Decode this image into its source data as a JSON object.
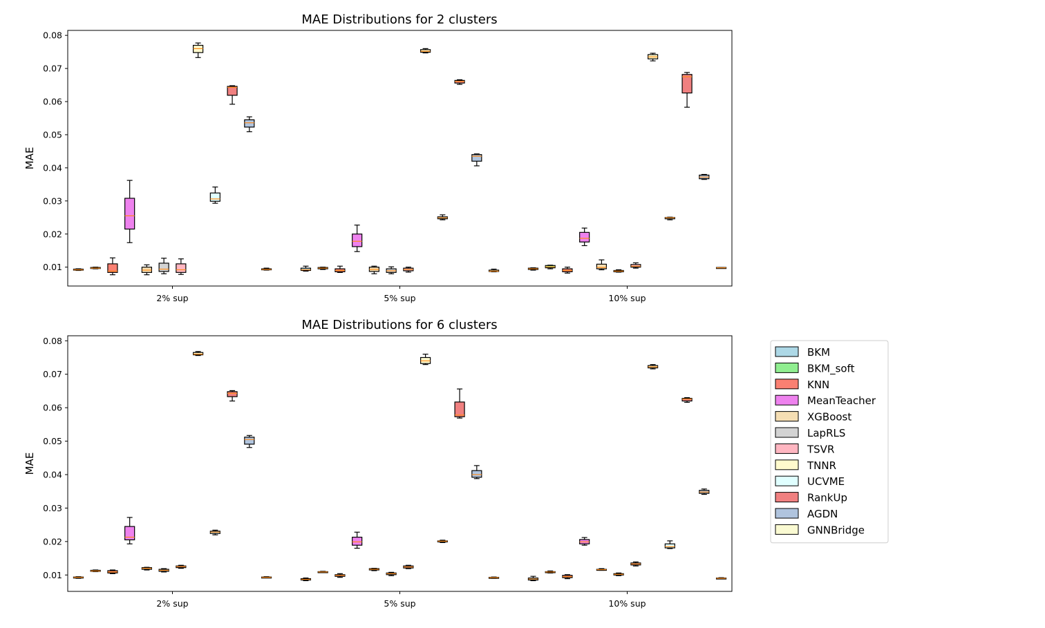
{
  "chart_data": [
    {
      "type": "boxplot",
      "title": "MAE Distributions for 2 clusters",
      "ylabel": "MAE",
      "xlabel": "",
      "ylim": [
        0.0043,
        0.0815
      ],
      "yticks": [
        "0.01",
        "0.02",
        "0.03",
        "0.04",
        "0.05",
        "0.06",
        "0.07",
        "0.08"
      ],
      "yticks_values": [
        0.01,
        0.02,
        0.03,
        0.04,
        0.05,
        0.06,
        0.07,
        0.08
      ],
      "groups": [
        "2% sup",
        "5% sup",
        "10% sup"
      ],
      "series": [
        {
          "name": "BKM",
          "boxes": [
            {
              "wl": 0.009,
              "q1": 0.0091,
              "med": 0.0092,
              "q3": 0.0094,
              "wh": 0.0095
            },
            {
              "wl": 0.0088,
              "q1": 0.009,
              "med": 0.0092,
              "q3": 0.0097,
              "wh": 0.0103
            },
            {
              "wl": 0.0091,
              "q1": 0.0093,
              "med": 0.0095,
              "q3": 0.0097,
              "wh": 0.0098
            }
          ]
        },
        {
          "name": "BKM_soft",
          "boxes": [
            {
              "wl": 0.0095,
              "q1": 0.0096,
              "med": 0.0097,
              "q3": 0.0099,
              "wh": 0.01
            },
            {
              "wl": 0.0093,
              "q1": 0.0095,
              "med": 0.0097,
              "q3": 0.0099,
              "wh": 0.01
            },
            {
              "wl": 0.0095,
              "q1": 0.0098,
              "med": 0.0101,
              "q3": 0.0105,
              "wh": 0.0106
            }
          ]
        },
        {
          "name": "KNN",
          "boxes": [
            {
              "wl": 0.0077,
              "q1": 0.0084,
              "med": 0.0088,
              "q3": 0.011,
              "wh": 0.0128
            },
            {
              "wl": 0.0084,
              "q1": 0.0086,
              "med": 0.009,
              "q3": 0.0095,
              "wh": 0.0103
            },
            {
              "wl": 0.0082,
              "q1": 0.0086,
              "med": 0.009,
              "q3": 0.0095,
              "wh": 0.01
            }
          ]
        },
        {
          "name": "MeanTeacher",
          "boxes": [
            {
              "wl": 0.0174,
              "q1": 0.0215,
              "med": 0.0255,
              "q3": 0.0308,
              "wh": 0.0362
            },
            {
              "wl": 0.0147,
              "q1": 0.0162,
              "med": 0.0178,
              "q3": 0.02,
              "wh": 0.0227
            },
            {
              "wl": 0.0165,
              "q1": 0.0176,
              "med": 0.0187,
              "q3": 0.0205,
              "wh": 0.0218
            }
          ]
        },
        {
          "name": "XGBoost",
          "boxes": [
            {
              "wl": 0.0077,
              "q1": 0.0084,
              "med": 0.0091,
              "q3": 0.01,
              "wh": 0.0107
            },
            {
              "wl": 0.008,
              "q1": 0.0087,
              "med": 0.0093,
              "q3": 0.01,
              "wh": 0.0103
            },
            {
              "wl": 0.0092,
              "q1": 0.0095,
              "med": 0.0099,
              "q3": 0.0109,
              "wh": 0.0122
            }
          ]
        },
        {
          "name": "LapRLS",
          "boxes": [
            {
              "wl": 0.008,
              "q1": 0.0087,
              "med": 0.0094,
              "q3": 0.0112,
              "wh": 0.0127
            },
            {
              "wl": 0.008,
              "q1": 0.0084,
              "med": 0.0089,
              "q3": 0.0095,
              "wh": 0.0101
            },
            {
              "wl": 0.0085,
              "q1": 0.0086,
              "med": 0.0088,
              "q3": 0.009,
              "wh": 0.0092
            }
          ]
        },
        {
          "name": "TSVR",
          "boxes": [
            {
              "wl": 0.0078,
              "q1": 0.0084,
              "med": 0.0092,
              "q3": 0.011,
              "wh": 0.0125
            },
            {
              "wl": 0.0085,
              "q1": 0.0089,
              "med": 0.0093,
              "q3": 0.0097,
              "wh": 0.01
            },
            {
              "wl": 0.0097,
              "q1": 0.01,
              "med": 0.0103,
              "q3": 0.0108,
              "wh": 0.0113
            }
          ]
        },
        {
          "name": "TNNR",
          "boxes": [
            {
              "wl": 0.0733,
              "q1": 0.0748,
              "med": 0.076,
              "q3": 0.077,
              "wh": 0.0777
            },
            {
              "wl": 0.0747,
              "q1": 0.0749,
              "med": 0.0752,
              "q3": 0.0757,
              "wh": 0.076
            },
            {
              "wl": 0.0723,
              "q1": 0.0729,
              "med": 0.0735,
              "q3": 0.0742,
              "wh": 0.0746
            }
          ]
        },
        {
          "name": "UCVME",
          "boxes": [
            {
              "wl": 0.0293,
              "q1": 0.0299,
              "med": 0.0306,
              "q3": 0.0324,
              "wh": 0.0342
            },
            {
              "wl": 0.0243,
              "q1": 0.0246,
              "med": 0.0249,
              "q3": 0.0252,
              "wh": 0.0258
            },
            {
              "wl": 0.0243,
              "q1": 0.0246,
              "med": 0.0249,
              "q3": 0.025,
              "wh": 0.0251
            }
          ]
        },
        {
          "name": "RankUp",
          "boxes": [
            {
              "wl": 0.0592,
              "q1": 0.0619,
              "med": 0.0643,
              "q3": 0.0646,
              "wh": 0.0648
            },
            {
              "wl": 0.0652,
              "q1": 0.0656,
              "med": 0.0661,
              "q3": 0.0664,
              "wh": 0.0666
            },
            {
              "wl": 0.0583,
              "q1": 0.0626,
              "med": 0.0675,
              "q3": 0.0682,
              "wh": 0.0688
            }
          ]
        },
        {
          "name": "AGDN",
          "boxes": [
            {
              "wl": 0.0509,
              "q1": 0.0523,
              "med": 0.0536,
              "q3": 0.0545,
              "wh": 0.0554
            },
            {
              "wl": 0.0406,
              "q1": 0.042,
              "med": 0.0435,
              "q3": 0.044,
              "wh": 0.0442
            },
            {
              "wl": 0.0365,
              "q1": 0.0367,
              "med": 0.0372,
              "q3": 0.0378,
              "wh": 0.038
            }
          ]
        },
        {
          "name": "GNNBridge",
          "boxes": [
            {
              "wl": 0.0091,
              "q1": 0.0092,
              "med": 0.0093,
              "q3": 0.0095,
              "wh": 0.0097
            },
            {
              "wl": 0.0086,
              "q1": 0.0087,
              "med": 0.0088,
              "q3": 0.0091,
              "wh": 0.0094
            },
            {
              "wl": 0.0097,
              "q1": 0.0097,
              "med": 0.0098,
              "q3": 0.0099,
              "wh": 0.0099
            }
          ]
        }
      ]
    },
    {
      "type": "boxplot",
      "title": "MAE Distributions for 6 clusters",
      "ylabel": "MAE",
      "xlabel": "",
      "ylim": [
        0.0051,
        0.0815
      ],
      "yticks": [
        "0.01",
        "0.02",
        "0.03",
        "0.04",
        "0.05",
        "0.06",
        "0.07",
        "0.08"
      ],
      "yticks_values": [
        0.01,
        0.02,
        0.03,
        0.04,
        0.05,
        0.06,
        0.07,
        0.08
      ],
      "groups": [
        "2% sup",
        "5% sup",
        "10% sup"
      ],
      "series": [
        {
          "name": "BKM",
          "boxes": [
            {
              "wl": 0.009,
              "q1": 0.0092,
              "med": 0.0093,
              "q3": 0.0094,
              "wh": 0.0095
            },
            {
              "wl": 0.0083,
              "q1": 0.0085,
              "med": 0.0087,
              "q3": 0.0089,
              "wh": 0.0091
            },
            {
              "wl": 0.0083,
              "q1": 0.0085,
              "med": 0.0088,
              "q3": 0.0091,
              "wh": 0.0096
            }
          ]
        },
        {
          "name": "BKM_soft",
          "boxes": [
            {
              "wl": 0.011,
              "q1": 0.0111,
              "med": 0.0112,
              "q3": 0.0114,
              "wh": 0.0115
            },
            {
              "wl": 0.0107,
              "q1": 0.0108,
              "med": 0.0109,
              "q3": 0.011,
              "wh": 0.0111
            },
            {
              "wl": 0.0106,
              "q1": 0.0108,
              "med": 0.0109,
              "q3": 0.011,
              "wh": 0.0112
            }
          ]
        },
        {
          "name": "KNN",
          "boxes": [
            {
              "wl": 0.0104,
              "q1": 0.0106,
              "med": 0.0109,
              "q3": 0.0113,
              "wh": 0.0115
            },
            {
              "wl": 0.0093,
              "q1": 0.0096,
              "med": 0.0099,
              "q3": 0.0101,
              "wh": 0.0104
            },
            {
              "wl": 0.0089,
              "q1": 0.0092,
              "med": 0.0095,
              "q3": 0.0099,
              "wh": 0.0101
            }
          ]
        },
        {
          "name": "MeanTeacher",
          "boxes": [
            {
              "wl": 0.0193,
              "q1": 0.0205,
              "med": 0.0213,
              "q3": 0.0245,
              "wh": 0.0272
            },
            {
              "wl": 0.018,
              "q1": 0.0189,
              "med": 0.0199,
              "q3": 0.0213,
              "wh": 0.0228
            },
            {
              "wl": 0.0189,
              "q1": 0.0193,
              "med": 0.0199,
              "q3": 0.0206,
              "wh": 0.0212
            }
          ]
        },
        {
          "name": "XGBoost",
          "boxes": [
            {
              "wl": 0.0115,
              "q1": 0.0117,
              "med": 0.012,
              "q3": 0.0122,
              "wh": 0.0123
            },
            {
              "wl": 0.0113,
              "q1": 0.0115,
              "med": 0.0117,
              "q3": 0.0119,
              "wh": 0.012
            },
            {
              "wl": 0.0114,
              "q1": 0.0115,
              "med": 0.0116,
              "q3": 0.0117,
              "wh": 0.0119
            }
          ]
        },
        {
          "name": "LapRLS",
          "boxes": [
            {
              "wl": 0.0109,
              "q1": 0.0111,
              "med": 0.0114,
              "q3": 0.0117,
              "wh": 0.0119
            },
            {
              "wl": 0.0098,
              "q1": 0.0101,
              "med": 0.0104,
              "q3": 0.0106,
              "wh": 0.0108
            },
            {
              "wl": 0.0098,
              "q1": 0.01,
              "med": 0.0102,
              "q3": 0.0104,
              "wh": 0.0106
            }
          ]
        },
        {
          "name": "TSVR",
          "boxes": [
            {
              "wl": 0.012,
              "q1": 0.0122,
              "med": 0.0125,
              "q3": 0.0127,
              "wh": 0.0129
            },
            {
              "wl": 0.0119,
              "q1": 0.0121,
              "med": 0.0124,
              "q3": 0.0127,
              "wh": 0.0129
            },
            {
              "wl": 0.0127,
              "q1": 0.013,
              "med": 0.0133,
              "q3": 0.0136,
              "wh": 0.0139
            }
          ]
        },
        {
          "name": "TNNR",
          "boxes": [
            {
              "wl": 0.0756,
              "q1": 0.0758,
              "med": 0.076,
              "q3": 0.0765,
              "wh": 0.0768
            },
            {
              "wl": 0.0729,
              "q1": 0.0732,
              "med": 0.074,
              "q3": 0.075,
              "wh": 0.076
            },
            {
              "wl": 0.0716,
              "q1": 0.0719,
              "med": 0.0722,
              "q3": 0.0726,
              "wh": 0.0729
            }
          ]
        },
        {
          "name": "UCVME",
          "boxes": [
            {
              "wl": 0.022,
              "q1": 0.0224,
              "med": 0.0228,
              "q3": 0.0231,
              "wh": 0.0234
            },
            {
              "wl": 0.0197,
              "q1": 0.0199,
              "med": 0.0201,
              "q3": 0.0202,
              "wh": 0.0204
            },
            {
              "wl": 0.0179,
              "q1": 0.0181,
              "med": 0.0185,
              "q3": 0.0193,
              "wh": 0.0202
            }
          ]
        },
        {
          "name": "RankUp",
          "boxes": [
            {
              "wl": 0.062,
              "q1": 0.0633,
              "med": 0.0643,
              "q3": 0.0648,
              "wh": 0.0651
            },
            {
              "wl": 0.0569,
              "q1": 0.0573,
              "med": 0.0578,
              "q3": 0.0617,
              "wh": 0.0656
            },
            {
              "wl": 0.0616,
              "q1": 0.062,
              "med": 0.0626,
              "q3": 0.0628,
              "wh": 0.063
            }
          ]
        },
        {
          "name": "AGDN",
          "boxes": [
            {
              "wl": 0.0481,
              "q1": 0.0491,
              "med": 0.0505,
              "q3": 0.0512,
              "wh": 0.0517
            },
            {
              "wl": 0.0388,
              "q1": 0.0392,
              "med": 0.04,
              "q3": 0.0412,
              "wh": 0.0427
            },
            {
              "wl": 0.0341,
              "q1": 0.0344,
              "med": 0.0348,
              "q3": 0.0353,
              "wh": 0.0357
            }
          ]
        },
        {
          "name": "GNNBridge",
          "boxes": [
            {
              "wl": 0.0092,
              "q1": 0.0093,
              "med": 0.0093,
              "q3": 0.0094,
              "wh": 0.0095
            },
            {
              "wl": 0.009,
              "q1": 0.0091,
              "med": 0.0092,
              "q3": 0.0093,
              "wh": 0.0094
            },
            {
              "wl": 0.0089,
              "q1": 0.009,
              "med": 0.009,
              "q3": 0.0091,
              "wh": 0.0092
            }
          ]
        }
      ]
    }
  ],
  "legend": {
    "placement": "right",
    "entries": [
      {
        "name": "BKM",
        "color": "#add8e6"
      },
      {
        "name": "BKM_soft",
        "color": "#90ee90"
      },
      {
        "name": "KNN",
        "color": "#fa8072"
      },
      {
        "name": "MeanTeacher",
        "color": "#ee82ee"
      },
      {
        "name": "XGBoost",
        "color": "#f5deb3"
      },
      {
        "name": "LapRLS",
        "color": "#d3d3d3"
      },
      {
        "name": "TSVR",
        "color": "#ffb6c1"
      },
      {
        "name": "TNNR",
        "color": "#fffacd"
      },
      {
        "name": "UCVME",
        "color": "#e0ffff"
      },
      {
        "name": "RankUp",
        "color": "#f08080"
      },
      {
        "name": "AGDN",
        "color": "#b0c4de"
      },
      {
        "name": "GNNBridge",
        "color": "#fafad2"
      }
    ]
  },
  "colors": {
    "median": "#ff8c1a",
    "frame": "#000000",
    "box_fill_low_positions": "#f5deb3",
    "knn_low": "#fa8072"
  }
}
